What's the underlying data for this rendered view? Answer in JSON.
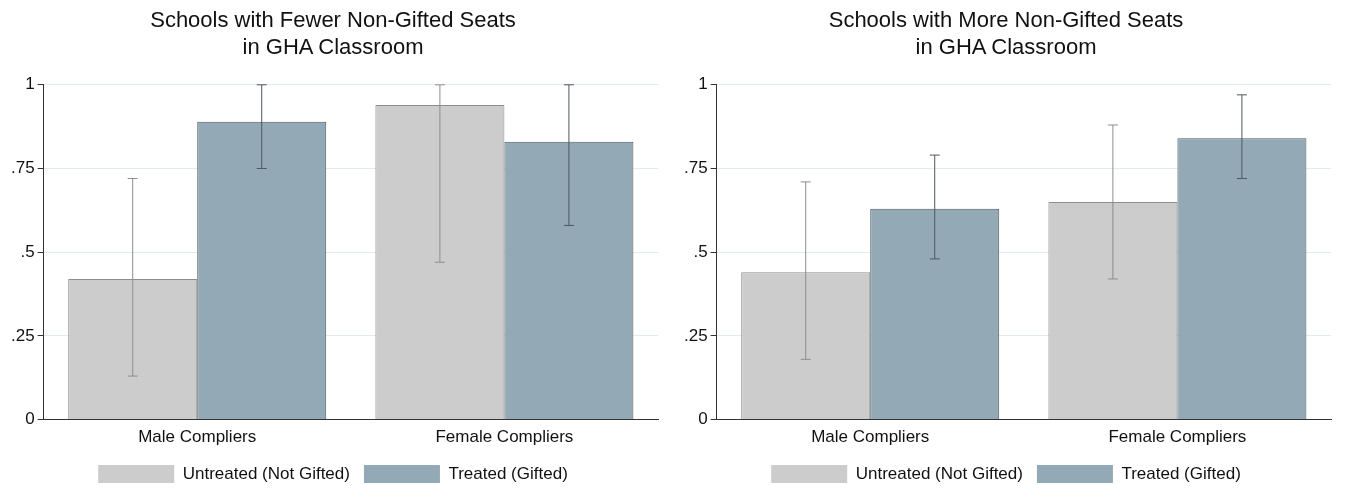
{
  "chart_data": [
    {
      "type": "bar",
      "title": "Schools with Fewer Non-Gifted Seats\nin GHA Classroom",
      "categories": [
        "Male Compliers",
        "Female Compliers"
      ],
      "ylim": [
        0,
        1
      ],
      "yticks": [
        {
          "value": 0,
          "label": "0"
        },
        {
          "value": 0.25,
          "label": ".25"
        },
        {
          "value": 0.5,
          "label": ".5"
        },
        {
          "value": 0.75,
          "label": ".75"
        },
        {
          "value": 1,
          "label": "1"
        }
      ],
      "grid": "y",
      "legend": "bottom",
      "series": [
        {
          "name": "Untreated (Not Gifted)",
          "color": "#cccccc",
          "values": [
            0.42,
            0.94
          ],
          "errors": [
            [
              0.13,
              0.72
            ],
            [
              0.47,
              1.0
            ]
          ]
        },
        {
          "name": "Treated (Gifted)",
          "color": "#94a9b6",
          "values": [
            0.89,
            0.83
          ],
          "errors": [
            [
              0.75,
              1.0
            ],
            [
              0.58,
              1.0
            ]
          ]
        }
      ]
    },
    {
      "type": "bar",
      "title": "Schools with More Non-Gifted Seats\nin GHA Classroom",
      "categories": [
        "Male Compliers",
        "Female Compliers"
      ],
      "ylim": [
        0,
        1
      ],
      "yticks": [
        {
          "value": 0,
          "label": "0"
        },
        {
          "value": 0.25,
          "label": ".25"
        },
        {
          "value": 0.5,
          "label": ".5"
        },
        {
          "value": 0.75,
          "label": ".75"
        },
        {
          "value": 1,
          "label": "1"
        }
      ],
      "grid": "y",
      "legend": "bottom",
      "series": [
        {
          "name": "Untreated (Not Gifted)",
          "color": "#cccccc",
          "values": [
            0.44,
            0.65
          ],
          "errors": [
            [
              0.18,
              0.71
            ],
            [
              0.42,
              0.88
            ]
          ]
        },
        {
          "name": "Treated (Gifted)",
          "color": "#94a9b6",
          "values": [
            0.63,
            0.84
          ],
          "errors": [
            [
              0.48,
              0.79
            ],
            [
              0.72,
              0.97
            ]
          ]
        }
      ]
    }
  ]
}
